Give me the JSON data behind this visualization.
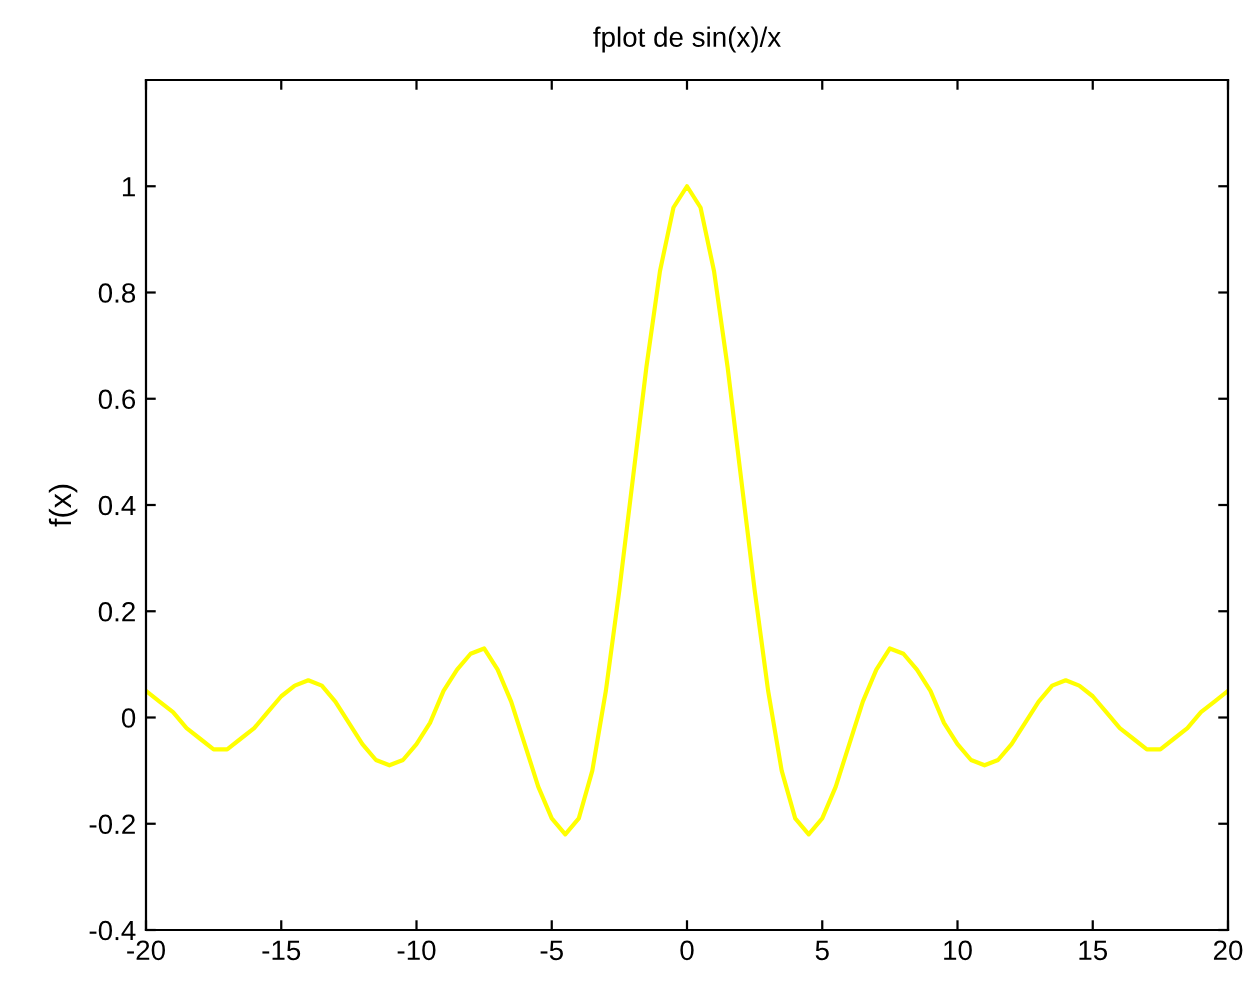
{
  "chart_data": {
    "type": "line",
    "title": "fplot de sin(x)/x",
    "ylabel": "f(x)",
    "xlim": [
      -20,
      20
    ],
    "xticks": [
      -20,
      -15,
      -10,
      -5,
      0,
      5,
      10,
      15,
      20
    ],
    "ylim": [
      -0.4,
      1.2
    ],
    "yticks": [
      -0.4,
      -0.2,
      0,
      0.2,
      0.4,
      0.6,
      0.8,
      1
    ],
    "grid": false,
    "marker": "none",
    "line_style": "solid",
    "series": [
      {
        "color": "#ffff00",
        "x": [
          -20,
          -19.5,
          -19,
          -18.5,
          -18,
          -17.5,
          -17,
          -16.5,
          -16,
          -15.5,
          -15,
          -14.5,
          -14,
          -13.5,
          -13,
          -12.5,
          -12,
          -11.5,
          -11,
          -10.5,
          -10,
          -9.5,
          -9,
          -8.5,
          -8,
          -7.5,
          -7,
          -6.5,
          -6,
          -5.5,
          -5,
          -4.5,
          -4,
          -3.5,
          -3,
          -2.5,
          -2,
          -1.5,
          -1,
          -0.5,
          0,
          0.5,
          1,
          1.5,
          2,
          2.5,
          3,
          3.5,
          4,
          4.5,
          5,
          5.5,
          6,
          6.5,
          7,
          7.5,
          8,
          8.5,
          9,
          9.5,
          10,
          10.5,
          11,
          11.5,
          12,
          12.5,
          13,
          13.5,
          14,
          14.5,
          15,
          15.5,
          16,
          16.5,
          17,
          17.5,
          18,
          18.5,
          19,
          19.5,
          20
        ],
        "values": [
          0.05,
          0.03,
          0.01,
          -0.02,
          -0.04,
          -0.06,
          -0.06,
          -0.04,
          -0.02,
          0.01,
          0.04,
          0.06,
          0.07,
          0.06,
          0.03,
          -0.01,
          -0.05,
          -0.08,
          -0.09,
          -0.08,
          -0.05,
          -0.01,
          0.05,
          0.09,
          0.12,
          0.13,
          0.09,
          0.03,
          -0.05,
          -0.13,
          -0.19,
          -0.22,
          -0.19,
          -0.1,
          0.05,
          0.24,
          0.45,
          0.66,
          0.84,
          0.96,
          1,
          0.96,
          0.84,
          0.66,
          0.45,
          0.24,
          0.05,
          -0.1,
          -0.19,
          -0.22,
          -0.19,
          -0.13,
          -0.05,
          0.03,
          0.09,
          0.13,
          0.12,
          0.09,
          0.05,
          -0.01,
          -0.05,
          -0.08,
          -0.09,
          -0.08,
          -0.05,
          -0.01,
          0.03,
          0.06,
          0.07,
          0.06,
          0.04,
          0.01,
          -0.02,
          -0.04,
          -0.06,
          -0.06,
          -0.04,
          -0.02,
          0.01,
          0.03,
          0.05
        ]
      }
    ]
  }
}
